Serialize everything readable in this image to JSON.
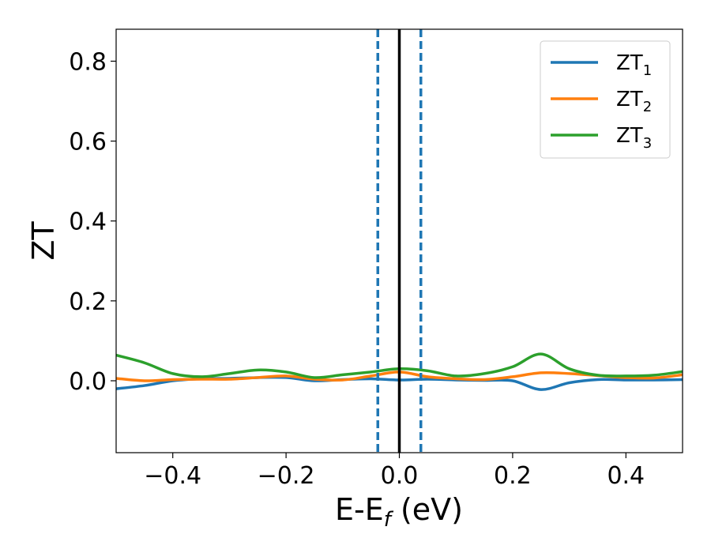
{
  "chart_data": {
    "type": "line",
    "xlabel": "E-E",
    "xlabel_sub": "f",
    "xlabel_unit": " (eV)",
    "ylabel": "ZT",
    "xlim": [
      -0.5,
      0.5
    ],
    "ylim": [
      -0.18,
      0.88
    ],
    "x_ticks": [
      -0.4,
      -0.2,
      0.0,
      0.2,
      0.4
    ],
    "x_tick_labels": [
      "−0.4",
      "−0.2",
      "0.0",
      "0.2",
      "0.4"
    ],
    "y_ticks": [
      0.0,
      0.2,
      0.4,
      0.6,
      0.8
    ],
    "y_tick_labels": [
      "0.0",
      "0.2",
      "0.4",
      "0.6",
      "0.8"
    ],
    "grid": false,
    "legend_position": "top-right",
    "vertical_lines": [
      {
        "x": 0.0,
        "style": "solid",
        "color": "#000000"
      },
      {
        "x": -0.038,
        "style": "dashed",
        "color": "#1f77b4"
      },
      {
        "x": 0.038,
        "style": "dashed",
        "color": "#1f77b4"
      }
    ],
    "x": [
      -0.5,
      -0.45,
      -0.4,
      -0.35,
      -0.3,
      -0.25,
      -0.2,
      -0.15,
      -0.1,
      -0.05,
      0.0,
      0.05,
      0.1,
      0.15,
      0.2,
      0.25,
      0.3,
      0.35,
      0.4,
      0.45,
      0.5
    ],
    "series": [
      {
        "name": "ZT",
        "sub": "1",
        "color": "#1f77b4",
        "values": [
          -0.02,
          -0.012,
          0.0,
          0.005,
          0.006,
          0.008,
          0.008,
          0.0,
          0.003,
          0.005,
          0.002,
          0.004,
          0.002,
          0.001,
          0.0,
          -0.022,
          -0.005,
          0.003,
          0.002,
          0.002,
          0.003
        ]
      },
      {
        "name": "ZT",
        "sub": "2",
        "color": "#ff7f0e",
        "values": [
          0.006,
          0.0,
          0.003,
          0.004,
          0.004,
          0.008,
          0.012,
          0.004,
          0.002,
          0.012,
          0.022,
          0.01,
          0.005,
          0.003,
          0.01,
          0.02,
          0.018,
          0.013,
          0.008,
          0.007,
          0.015
        ]
      },
      {
        "name": "ZT",
        "sub": "3",
        "color": "#2ca02c",
        "values": [
          0.064,
          0.045,
          0.018,
          0.01,
          0.018,
          0.027,
          0.022,
          0.008,
          0.015,
          0.022,
          0.03,
          0.025,
          0.012,
          0.018,
          0.035,
          0.067,
          0.03,
          0.014,
          0.012,
          0.014,
          0.023
        ]
      }
    ]
  }
}
